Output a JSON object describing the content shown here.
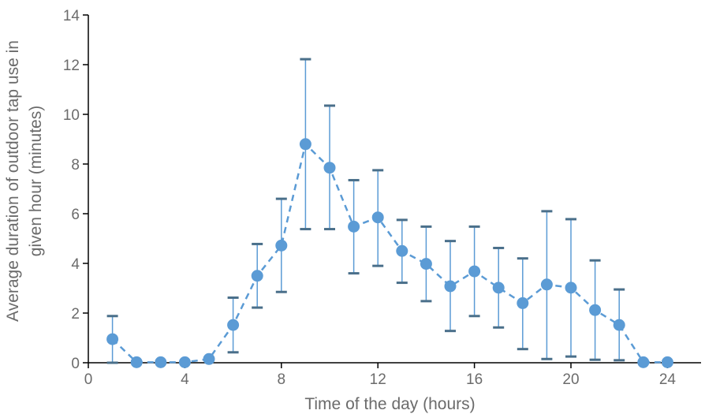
{
  "chart_data": {
    "type": "line",
    "title": "",
    "xlabel": "Time of the day (hours)",
    "ylabel_lines": [
      "Average duration of outdoor tap use in",
      "given hour (minutes)"
    ],
    "xlim": [
      0,
      25
    ],
    "ylim": [
      0,
      14
    ],
    "xticks": [
      0,
      4,
      8,
      12,
      16,
      20,
      24
    ],
    "yticks": [
      0,
      2,
      4,
      6,
      8,
      10,
      12,
      14
    ],
    "grid": false,
    "legend": "none",
    "series": [
      {
        "line_style": "dashed",
        "marker": "circle",
        "color": "#5b9bd5",
        "error_bar_color": "#5b9bd5",
        "x": [
          1,
          2,
          3,
          4,
          5,
          6,
          7,
          8,
          9,
          10,
          11,
          12,
          13,
          14,
          15,
          16,
          17,
          18,
          19,
          20,
          21,
          22,
          23,
          24
        ],
        "y": [
          0.95,
          0.02,
          0.02,
          0.02,
          0.15,
          1.52,
          3.5,
          4.72,
          8.8,
          7.85,
          5.48,
          5.85,
          4.5,
          3.98,
          3.08,
          3.68,
          3.02,
          2.4,
          3.15,
          3.02,
          2.12,
          1.52,
          0.02,
          0.02
        ],
        "y_upper": [
          1.88,
          null,
          null,
          null,
          null,
          2.62,
          4.78,
          6.6,
          12.22,
          10.35,
          7.35,
          7.75,
          5.75,
          5.48,
          4.9,
          5.48,
          4.62,
          4.2,
          6.1,
          5.78,
          4.12,
          2.95,
          null,
          null
        ],
        "y_lower": [
          0.0,
          null,
          null,
          null,
          null,
          0.42,
          2.22,
          2.85,
          5.38,
          5.38,
          3.6,
          3.9,
          3.22,
          2.48,
          1.28,
          1.88,
          1.42,
          0.55,
          0.15,
          0.25,
          0.12,
          0.1,
          null,
          null
        ]
      }
    ]
  }
}
